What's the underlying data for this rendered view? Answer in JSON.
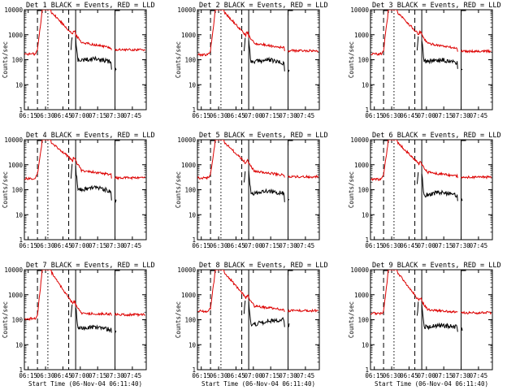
{
  "figure": {
    "series_labels": {
      "events": "BLACK = Events",
      "lld": "RED = LLD"
    },
    "colors": {
      "events": "#000000",
      "lld": "#dd0000",
      "axes": "#000000",
      "background": "#ffffff"
    }
  },
  "chart_data": [
    {
      "type": "line",
      "title": "Det 1 BLACK = Events, RED = LLD",
      "det": "1",
      "xlabel": "",
      "ylabel": "Counts/sec",
      "yscale": "log",
      "ylim": [
        1,
        10000
      ],
      "y_ticks": [
        "1",
        "10",
        "100",
        "1000",
        "10000"
      ],
      "x_ticks": [
        "06:15",
        "06:30",
        "06:45",
        "07:00",
        "07:15",
        "07:30",
        "07:45"
      ],
      "x_tick_min": [
        375,
        390,
        405,
        420,
        435,
        450,
        465
      ],
      "xlim": [
        371.7,
        477
      ],
      "event_lines": [
        {
          "min": 383,
          "style": "dashed"
        },
        {
          "min": 392,
          "style": "dotted"
        },
        {
          "min": 410,
          "style": "dashed"
        },
        {
          "min": 416,
          "style": "solid"
        }
      ],
      "lld_anchor_values": [
        170,
        250,
        8000,
        1000,
        500,
        300,
        250
      ],
      "events_anchor_values": [
        90,
        110,
        80,
        40
      ],
      "lld_variant": 1,
      "events_variant": 1,
      "show_event_curve": true
    },
    {
      "type": "line",
      "title": "Det 2 BLACK = Events, RED = LLD",
      "det": "2",
      "xlabel": "",
      "ylabel": "Counts/sec",
      "yscale": "log",
      "ylim": [
        1,
        10000
      ],
      "y_ticks": [
        "1",
        "10",
        "100",
        "1000",
        "10000"
      ],
      "x_ticks": [
        "06:15",
        "06:30",
        "06:45",
        "07:00",
        "07:15",
        "07:30",
        "07:45"
      ],
      "x_tick_min": [
        375,
        390,
        405,
        420,
        435,
        450,
        465
      ],
      "xlim": [
        371.7,
        477
      ],
      "event_lines": [
        {
          "min": 383,
          "style": "dashed"
        },
        {
          "min": 392,
          "style": "dotted"
        },
        {
          "min": 410,
          "style": "dashed"
        },
        {
          "min": 416,
          "style": "solid"
        }
      ],
      "lld_anchor_values": [
        160,
        240,
        8000,
        900,
        450,
        300,
        230
      ],
      "events_anchor_values": [
        80,
        100,
        70,
        35
      ],
      "lld_variant": 2,
      "events_variant": 2,
      "show_event_curve": true
    },
    {
      "type": "line",
      "title": "Det 3 BLACK = Events, RED = LLD",
      "det": "3",
      "xlabel": "",
      "ylabel": "Counts/sec",
      "yscale": "log",
      "ylim": [
        1,
        10000
      ],
      "y_ticks": [
        "1",
        "10",
        "100",
        "1000",
        "10000"
      ],
      "x_ticks": [
        "06:15",
        "06:30",
        "06:45",
        "07:00",
        "07:15",
        "07:30",
        "07:45"
      ],
      "x_tick_min": [
        375,
        390,
        405,
        420,
        435,
        450,
        465
      ],
      "xlim": [
        371.7,
        477
      ],
      "event_lines": [
        {
          "min": 383,
          "style": "dashed"
        },
        {
          "min": 392,
          "style": "dotted"
        },
        {
          "min": 410,
          "style": "dashed"
        },
        {
          "min": 416,
          "style": "solid"
        }
      ],
      "lld_anchor_values": [
        170,
        240,
        8000,
        950,
        450,
        280,
        220
      ],
      "events_anchor_values": [
        85,
        100,
        75,
        45
      ],
      "lld_variant": 3,
      "events_variant": 3,
      "show_event_curve": true
    },
    {
      "type": "line",
      "title": "Det 4 BLACK = Events, RED = LLD",
      "det": "4",
      "xlabel": "",
      "ylabel": "Counts/sec",
      "yscale": "log",
      "ylim": [
        1,
        10000
      ],
      "y_ticks": [
        "1",
        "10",
        "100",
        "1000",
        "10000"
      ],
      "x_ticks": [
        "06:15",
        "06:30",
        "06:45",
        "07:00",
        "07:15",
        "07:30",
        "07:45"
      ],
      "x_tick_min": [
        375,
        390,
        405,
        420,
        435,
        450,
        465
      ],
      "xlim": [
        371.7,
        477
      ],
      "event_lines": [
        {
          "min": 383,
          "style": "dashed"
        },
        {
          "min": 392,
          "style": "dotted"
        },
        {
          "min": 410,
          "style": "dashed"
        },
        {
          "min": 416,
          "style": "solid"
        }
      ],
      "lld_anchor_values": [
        280,
        400,
        8000,
        1400,
        600,
        400,
        300
      ],
      "events_anchor_values": [
        100,
        120,
        90,
        40
      ],
      "lld_variant": 4,
      "events_variant": 4,
      "show_event_curve": true
    },
    {
      "type": "line",
      "title": "Det 5 BLACK = Events, RED = LLD",
      "det": "5",
      "xlabel": "",
      "ylabel": "Counts/sec",
      "yscale": "log",
      "ylim": [
        1,
        10000
      ],
      "y_ticks": [
        "1",
        "10",
        "100",
        "1000",
        "10000"
      ],
      "x_ticks": [
        "06:15",
        "06:30",
        "06:45",
        "07:00",
        "07:15",
        "07:30",
        "07:45"
      ],
      "x_tick_min": [
        375,
        390,
        405,
        420,
        435,
        450,
        465
      ],
      "xlim": [
        371.7,
        477
      ],
      "event_lines": [
        {
          "min": 383,
          "style": "dashed"
        },
        {
          "min": 392,
          "style": "dotted"
        },
        {
          "min": 410,
          "style": "dashed"
        },
        {
          "min": 416,
          "style": "solid"
        }
      ],
      "lld_anchor_values": [
        300,
        420,
        8000,
        1100,
        550,
        380,
        330
      ],
      "events_anchor_values": [
        70,
        90,
        70,
        35
      ],
      "lld_variant": 5,
      "events_variant": 5,
      "show_event_curve": true
    },
    {
      "type": "line",
      "title": "Det 6 BLACK = Events, RED = LLD",
      "det": "6",
      "xlabel": "",
      "ylabel": "Counts/sec",
      "yscale": "log",
      "ylim": [
        1,
        10000
      ],
      "y_ticks": [
        "1",
        "10",
        "100",
        "1000",
        "10000"
      ],
      "x_ticks": [
        "06:15",
        "06:30",
        "06:45",
        "07:00",
        "07:15",
        "07:30",
        "07:45"
      ],
      "x_tick_min": [
        375,
        390,
        405,
        420,
        435,
        450,
        465
      ],
      "xlim": [
        371.7,
        477
      ],
      "event_lines": [
        {
          "min": 383,
          "style": "dashed"
        },
        {
          "min": 392,
          "style": "dotted"
        },
        {
          "min": 410,
          "style": "dashed"
        },
        {
          "min": 416,
          "style": "solid"
        }
      ],
      "lld_anchor_values": [
        260,
        380,
        8000,
        1000,
        500,
        350,
        320
      ],
      "events_anchor_values": [
        60,
        80,
        60,
        40
      ],
      "lld_variant": 6,
      "events_variant": 6,
      "show_event_curve": true
    },
    {
      "type": "line",
      "title": "Det 7 BLACK = Events, RED = LLD",
      "det": "7",
      "xlabel": "Start Time (06-Nov-04 06:11:40)",
      "ylabel": "Counts/sec",
      "yscale": "log",
      "ylim": [
        1,
        10000
      ],
      "y_ticks": [
        "1",
        "10",
        "100",
        "1000",
        "10000"
      ],
      "x_ticks": [
        "06:15",
        "06:30",
        "06:45",
        "07:00",
        "07:15",
        "07:30",
        "07:45"
      ],
      "x_tick_min": [
        375,
        390,
        405,
        420,
        435,
        450,
        465
      ],
      "xlim": [
        371.7,
        477
      ],
      "event_lines": [
        {
          "min": 383,
          "style": "dashed"
        },
        {
          "min": 392,
          "style": "dotted"
        },
        {
          "min": 410,
          "style": "dashed"
        },
        {
          "min": 416,
          "style": "solid"
        }
      ],
      "lld_anchor_values": [
        110,
        160,
        8000,
        400,
        180,
        170,
        160
      ],
      "events_anchor_values": [
        45,
        50,
        40,
        35
      ],
      "lld_variant": 7,
      "events_variant": 7,
      "show_event_curve": true
    },
    {
      "type": "line",
      "title": "Det 8 BLACK = Events, RED = LLD",
      "det": "8",
      "xlabel": "Start Time (06-Nov-04 06:11:40)",
      "ylabel": "Counts/sec",
      "yscale": "log",
      "ylim": [
        1,
        10000
      ],
      "y_ticks": [
        "1",
        "10",
        "100",
        "1000",
        "10000"
      ],
      "x_ticks": [
        "06:15",
        "06:30",
        "06:45",
        "07:00",
        "07:15",
        "07:30",
        "07:45"
      ],
      "x_tick_min": [
        375,
        390,
        405,
        420,
        435,
        450,
        465
      ],
      "xlim": [
        371.7,
        477
      ],
      "event_lines": [
        {
          "min": 383,
          "style": "dashed"
        },
        {
          "min": 392,
          "style": "dotted"
        },
        {
          "min": 410,
          "style": "dashed"
        },
        {
          "min": 416,
          "style": "solid"
        }
      ],
      "lld_anchor_values": [
        220,
        300,
        8000,
        700,
        350,
        250,
        230
      ],
      "events_anchor_values": [
        60,
        90,
        100,
        60
      ],
      "lld_variant": 8,
      "events_variant": 8,
      "show_event_curve": true
    },
    {
      "type": "line",
      "title": "Det 9 BLACK = Events, RED = LLD",
      "det": "9",
      "xlabel": "Start Time (06-Nov-04 06:11:40)",
      "ylabel": "Counts/sec",
      "yscale": "log",
      "ylim": [
        1,
        10000
      ],
      "y_ticks": [
        "1",
        "10",
        "100",
        "1000",
        "10000"
      ],
      "x_ticks": [
        "06:15",
        "06:30",
        "06:45",
        "07:00",
        "07:15",
        "07:30",
        "07:45"
      ],
      "x_tick_min": [
        375,
        390,
        405,
        420,
        435,
        450,
        465
      ],
      "xlim": [
        371.7,
        477
      ],
      "event_lines": [
        {
          "min": 383,
          "style": "dashed"
        },
        {
          "min": 392,
          "style": "dotted"
        },
        {
          "min": 410,
          "style": "dashed"
        },
        {
          "min": 416,
          "style": "solid"
        }
      ],
      "lld_anchor_values": [
        180,
        220,
        8000,
        550,
        250,
        200,
        190
      ],
      "events_anchor_values": [
        50,
        60,
        50,
        40
      ],
      "lld_variant": 9,
      "events_variant": 9,
      "show_event_curve": true
    }
  ]
}
